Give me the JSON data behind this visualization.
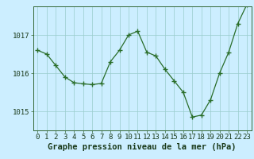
{
  "x": [
    0,
    1,
    2,
    3,
    4,
    5,
    6,
    7,
    8,
    9,
    10,
    11,
    12,
    13,
    14,
    15,
    16,
    17,
    18,
    19,
    20,
    21,
    22,
    23
  ],
  "y": [
    1016.6,
    1016.5,
    1016.2,
    1015.9,
    1015.75,
    1015.72,
    1015.7,
    1015.73,
    1016.3,
    1016.6,
    1017.0,
    1017.1,
    1016.55,
    1016.45,
    1016.1,
    1015.8,
    1015.5,
    1014.85,
    1014.9,
    1015.3,
    1016.0,
    1016.55,
    1017.3,
    1017.8
  ],
  "ylim": [
    1014.5,
    1017.75
  ],
  "yticks": [
    1015,
    1016,
    1017
  ],
  "xticks": [
    0,
    1,
    2,
    3,
    4,
    5,
    6,
    7,
    8,
    9,
    10,
    11,
    12,
    13,
    14,
    15,
    16,
    17,
    18,
    19,
    20,
    21,
    22,
    23
  ],
  "xlabel": "Graphe pression niveau de la mer (hPa)",
  "line_color": "#2a6e2a",
  "marker_color": "#2a6e2a",
  "bg_color": "#cceeff",
  "grid_color": "#99cccc",
  "tick_fontsize": 6.5,
  "xlabel_fontsize": 7.5
}
